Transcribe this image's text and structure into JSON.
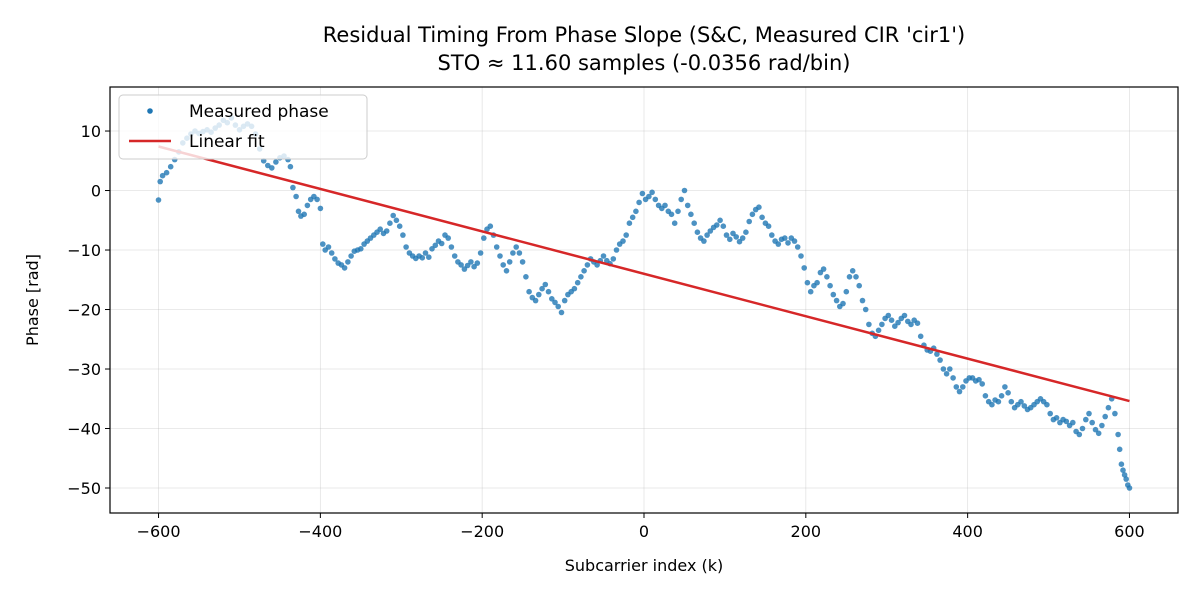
{
  "chart_data": {
    "type": "scatter",
    "title": "Residual Timing From Phase Slope (S&C, Measured CIR 'cir1')",
    "subtitle": "STO ≈ 11.60 samples (-0.0356 rad/bin)",
    "xlabel": "Subcarrier index (k)",
    "ylabel": "Phase [rad]",
    "xlim": [
      -660,
      660
    ],
    "ylim": [
      -54.2,
      17.4
    ],
    "xticks": [
      -600,
      -400,
      -200,
      0,
      200,
      400,
      600
    ],
    "xtick_labels": [
      "−600",
      "−400",
      "−200",
      "0",
      "200",
      "400",
      "600"
    ],
    "yticks": [
      -50,
      -40,
      -30,
      -20,
      -10,
      0,
      10
    ],
    "ytick_labels": [
      "−50",
      "−40",
      "−30",
      "−20",
      "−10",
      "0",
      "10"
    ],
    "grid": true,
    "legend_position": "top-left",
    "series": [
      {
        "name": "Measured phase",
        "kind": "scatter",
        "color": "#1f77b4",
        "points": [
          [
            -600,
            -1.6
          ],
          [
            -598,
            1.5
          ],
          [
            -595,
            2.5
          ],
          [
            -590,
            3.0
          ],
          [
            -585,
            4.0
          ],
          [
            -580,
            5.2
          ],
          [
            -575,
            6.5
          ],
          [
            -570,
            8.0
          ],
          [
            -565,
            8.8
          ],
          [
            -560,
            9.5
          ],
          [
            -555,
            10.0
          ],
          [
            -550,
            9.6
          ],
          [
            -545,
            9.9
          ],
          [
            -540,
            10.2
          ],
          [
            -535,
            9.8
          ],
          [
            -530,
            10.5
          ],
          [
            -525,
            11.0
          ],
          [
            -520,
            11.8
          ],
          [
            -515,
            11.4
          ],
          [
            -510,
            12.2
          ],
          [
            -505,
            11.0
          ],
          [
            -500,
            10.2
          ],
          [
            -495,
            10.8
          ],
          [
            -490,
            11.2
          ],
          [
            -485,
            10.8
          ],
          [
            -480,
            9.5
          ],
          [
            -475,
            7.0
          ],
          [
            -470,
            5.0
          ],
          [
            -465,
            4.2
          ],
          [
            -460,
            3.8
          ],
          [
            -455,
            4.8
          ],
          [
            -450,
            5.5
          ],
          [
            -445,
            5.8
          ],
          [
            -440,
            5.2
          ],
          [
            -437,
            4.0
          ],
          [
            -434,
            0.5
          ],
          [
            -430,
            -1.0
          ],
          [
            -427,
            -3.5
          ],
          [
            -424,
            -4.3
          ],
          [
            -420,
            -4.0
          ],
          [
            -416,
            -2.5
          ],
          [
            -412,
            -1.5
          ],
          [
            -408,
            -1.0
          ],
          [
            -404,
            -1.5
          ],
          [
            -400,
            -3.0
          ],
          [
            -397,
            -9.0
          ],
          [
            -394,
            -10.0
          ],
          [
            -390,
            -9.5
          ],
          [
            -386,
            -10.5
          ],
          [
            -382,
            -11.5
          ],
          [
            -378,
            -12.2
          ],
          [
            -374,
            -12.5
          ],
          [
            -370,
            -13.0
          ],
          [
            -366,
            -12.0
          ],
          [
            -362,
            -11.0
          ],
          [
            -358,
            -10.2
          ],
          [
            -354,
            -10.0
          ],
          [
            -350,
            -9.8
          ],
          [
            -346,
            -9.0
          ],
          [
            -342,
            -8.5
          ],
          [
            -338,
            -8.0
          ],
          [
            -334,
            -7.5
          ],
          [
            -330,
            -7.0
          ],
          [
            -326,
            -6.5
          ],
          [
            -322,
            -7.2
          ],
          [
            -318,
            -6.8
          ],
          [
            -314,
            -5.5
          ],
          [
            -310,
            -4.2
          ],
          [
            -306,
            -5.0
          ],
          [
            -302,
            -6.0
          ],
          [
            -298,
            -7.5
          ],
          [
            -294,
            -9.5
          ],
          [
            -290,
            -10.5
          ],
          [
            -286,
            -11.0
          ],
          [
            -282,
            -11.4
          ],
          [
            -278,
            -11.0
          ],
          [
            -274,
            -11.3
          ],
          [
            -270,
            -10.5
          ],
          [
            -266,
            -11.2
          ],
          [
            -262,
            -9.8
          ],
          [
            -258,
            -9.2
          ],
          [
            -254,
            -8.5
          ],
          [
            -250,
            -8.9
          ],
          [
            -246,
            -7.5
          ],
          [
            -242,
            -8.0
          ],
          [
            -238,
            -9.5
          ],
          [
            -234,
            -11.0
          ],
          [
            -230,
            -12.0
          ],
          [
            -226,
            -12.5
          ],
          [
            -222,
            -13.2
          ],
          [
            -218,
            -12.6
          ],
          [
            -214,
            -12.0
          ],
          [
            -210,
            -12.8
          ],
          [
            -206,
            -12.2
          ],
          [
            -202,
            -10.5
          ],
          [
            -198,
            -8.0
          ],
          [
            -194,
            -6.5
          ],
          [
            -190,
            -6.0
          ],
          [
            -186,
            -7.5
          ],
          [
            -182,
            -9.5
          ],
          [
            -178,
            -11.0
          ],
          [
            -174,
            -12.5
          ],
          [
            -170,
            -13.5
          ],
          [
            -166,
            -12.0
          ],
          [
            -162,
            -10.5
          ],
          [
            -158,
            -9.5
          ],
          [
            -154,
            -10.5
          ],
          [
            -150,
            -12.0
          ],
          [
            -146,
            -14.5
          ],
          [
            -142,
            -17.0
          ],
          [
            -138,
            -18.0
          ],
          [
            -134,
            -18.5
          ],
          [
            -130,
            -17.5
          ],
          [
            -126,
            -16.5
          ],
          [
            -122,
            -15.8
          ],
          [
            -118,
            -17.0
          ],
          [
            -114,
            -18.2
          ],
          [
            -110,
            -18.8
          ],
          [
            -106,
            -19.5
          ],
          [
            -102,
            -20.5
          ],
          [
            -98,
            -18.5
          ],
          [
            -94,
            -17.5
          ],
          [
            -90,
            -17.0
          ],
          [
            -86,
            -16.5
          ],
          [
            -82,
            -15.5
          ],
          [
            -78,
            -14.5
          ],
          [
            -74,
            -13.5
          ],
          [
            -70,
            -12.5
          ],
          [
            -66,
            -11.5
          ],
          [
            -62,
            -12.0
          ],
          [
            -58,
            -12.5
          ],
          [
            -54,
            -11.8
          ],
          [
            -50,
            -11.0
          ],
          [
            -46,
            -11.8
          ],
          [
            -42,
            -12.3
          ],
          [
            -38,
            -11.5
          ],
          [
            -34,
            -10.0
          ],
          [
            -30,
            -9.0
          ],
          [
            -26,
            -8.5
          ],
          [
            -22,
            -7.5
          ],
          [
            -18,
            -5.5
          ],
          [
            -14,
            -4.5
          ],
          [
            -10,
            -3.5
          ],
          [
            -6,
            -2.0
          ],
          [
            -2,
            -0.5
          ],
          [
            2,
            -1.5
          ],
          [
            6,
            -1.0
          ],
          [
            10,
            -0.3
          ],
          [
            14,
            -1.5
          ],
          [
            18,
            -2.5
          ],
          [
            22,
            -3.0
          ],
          [
            26,
            -2.5
          ],
          [
            30,
            -3.5
          ],
          [
            34,
            -4.0
          ],
          [
            38,
            -5.5
          ],
          [
            42,
            -3.5
          ],
          [
            46,
            -1.5
          ],
          [
            50,
            0.0
          ],
          [
            54,
            -2.5
          ],
          [
            58,
            -4.0
          ],
          [
            62,
            -5.5
          ],
          [
            66,
            -7.0
          ],
          [
            70,
            -8.0
          ],
          [
            74,
            -8.5
          ],
          [
            78,
            -7.5
          ],
          [
            82,
            -6.8
          ],
          [
            86,
            -6.2
          ],
          [
            90,
            -5.8
          ],
          [
            94,
            -5.0
          ],
          [
            98,
            -6.0
          ],
          [
            102,
            -7.5
          ],
          [
            106,
            -8.2
          ],
          [
            110,
            -7.2
          ],
          [
            114,
            -7.8
          ],
          [
            118,
            -8.6
          ],
          [
            122,
            -8.0
          ],
          [
            126,
            -7.0
          ],
          [
            130,
            -5.2
          ],
          [
            134,
            -4.0
          ],
          [
            138,
            -3.2
          ],
          [
            142,
            -2.8
          ],
          [
            146,
            -4.5
          ],
          [
            150,
            -5.5
          ],
          [
            154,
            -6.0
          ],
          [
            158,
            -7.5
          ],
          [
            162,
            -8.5
          ],
          [
            166,
            -9.0
          ],
          [
            170,
            -8.2
          ],
          [
            174,
            -8.0
          ],
          [
            178,
            -8.8
          ],
          [
            182,
            -8.0
          ],
          [
            186,
            -8.5
          ],
          [
            190,
            -9.5
          ],
          [
            194,
            -11.0
          ],
          [
            198,
            -13.0
          ],
          [
            202,
            -15.5
          ],
          [
            206,
            -17.0
          ],
          [
            210,
            -16.0
          ],
          [
            214,
            -15.5
          ],
          [
            218,
            -13.8
          ],
          [
            222,
            -13.2
          ],
          [
            226,
            -14.5
          ],
          [
            230,
            -16.0
          ],
          [
            234,
            -17.5
          ],
          [
            238,
            -18.5
          ],
          [
            242,
            -19.5
          ],
          [
            246,
            -19.0
          ],
          [
            250,
            -17.0
          ],
          [
            254,
            -14.5
          ],
          [
            258,
            -13.5
          ],
          [
            262,
            -14.5
          ],
          [
            266,
            -16.0
          ],
          [
            270,
            -18.5
          ],
          [
            274,
            -20.0
          ],
          [
            278,
            -22.5
          ],
          [
            282,
            -24.0
          ],
          [
            286,
            -24.5
          ],
          [
            290,
            -23.5
          ],
          [
            294,
            -22.5
          ],
          [
            298,
            -21.5
          ],
          [
            302,
            -21.0
          ],
          [
            306,
            -21.8
          ],
          [
            310,
            -22.8
          ],
          [
            314,
            -22.2
          ],
          [
            318,
            -21.5
          ],
          [
            322,
            -21.0
          ],
          [
            326,
            -22.0
          ],
          [
            330,
            -22.5
          ],
          [
            334,
            -21.8
          ],
          [
            338,
            -22.3
          ],
          [
            342,
            -24.5
          ],
          [
            346,
            -26.0
          ],
          [
            350,
            -26.8
          ],
          [
            354,
            -27.0
          ],
          [
            358,
            -26.5
          ],
          [
            362,
            -27.5
          ],
          [
            366,
            -28.5
          ],
          [
            370,
            -30.0
          ],
          [
            374,
            -30.8
          ],
          [
            378,
            -30.0
          ],
          [
            382,
            -31.5
          ],
          [
            386,
            -33.0
          ],
          [
            390,
            -33.8
          ],
          [
            394,
            -33.0
          ],
          [
            398,
            -32.0
          ],
          [
            402,
            -31.5
          ],
          [
            406,
            -31.5
          ],
          [
            410,
            -32.0
          ],
          [
            414,
            -31.8
          ],
          [
            418,
            -32.5
          ],
          [
            422,
            -34.5
          ],
          [
            426,
            -35.5
          ],
          [
            430,
            -36.0
          ],
          [
            434,
            -35.2
          ],
          [
            438,
            -35.5
          ],
          [
            442,
            -34.5
          ],
          [
            446,
            -33.0
          ],
          [
            450,
            -34.0
          ],
          [
            454,
            -35.5
          ],
          [
            458,
            -36.5
          ],
          [
            462,
            -36.0
          ],
          [
            466,
            -35.5
          ],
          [
            470,
            -36.2
          ],
          [
            474,
            -36.8
          ],
          [
            478,
            -36.5
          ],
          [
            482,
            -36.0
          ],
          [
            486,
            -35.5
          ],
          [
            490,
            -35.0
          ],
          [
            494,
            -35.5
          ],
          [
            498,
            -36.0
          ],
          [
            502,
            -37.5
          ],
          [
            506,
            -38.5
          ],
          [
            510,
            -38.2
          ],
          [
            514,
            -39.0
          ],
          [
            518,
            -38.5
          ],
          [
            522,
            -38.8
          ],
          [
            526,
            -39.5
          ],
          [
            530,
            -39.0
          ],
          [
            534,
            -40.5
          ],
          [
            538,
            -41.0
          ],
          [
            542,
            -40.0
          ],
          [
            546,
            -38.5
          ],
          [
            550,
            -37.5
          ],
          [
            554,
            -39.0
          ],
          [
            558,
            -40.2
          ],
          [
            562,
            -40.8
          ],
          [
            566,
            -39.5
          ],
          [
            570,
            -38.0
          ],
          [
            574,
            -36.5
          ],
          [
            578,
            -35.0
          ],
          [
            582,
            -37.5
          ],
          [
            586,
            -41.0
          ],
          [
            588,
            -43.5
          ],
          [
            590,
            -46.0
          ],
          [
            592,
            -47.0
          ],
          [
            594,
            -47.8
          ],
          [
            596,
            -48.5
          ],
          [
            598,
            -49.5
          ],
          [
            600,
            -50.0
          ]
        ]
      },
      {
        "name": "Linear fit",
        "kind": "line",
        "color": "#d62728",
        "points": [
          [
            -600,
            7.4
          ],
          [
            600,
            -35.4
          ]
        ]
      }
    ]
  }
}
